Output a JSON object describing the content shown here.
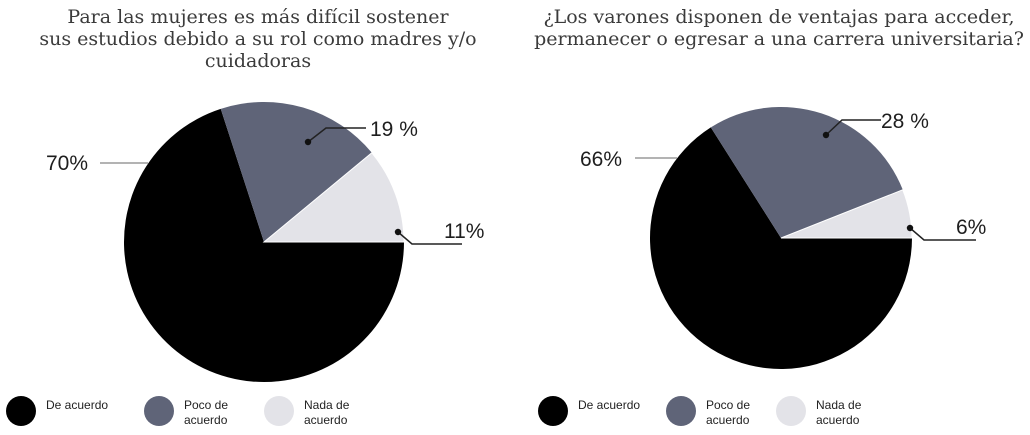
{
  "chart_data": [
    {
      "type": "pie",
      "title": "Para las mujeres es más difícil sostener sus estudios debido a su rol como madres y/o cuidadoras",
      "title_lines": [
        "Para las mujeres es más difícil sostener",
        "sus estudios debido a su rol como madres y/o",
        "cuidadoras"
      ],
      "slices": [
        {
          "name": "De acuerdo",
          "value": 70,
          "label": "70%",
          "color": "#000000"
        },
        {
          "name": "Poco de acuerdo",
          "value": 19,
          "label": "19 %",
          "color": "#5f6478"
        },
        {
          "name": "Nada de acuerdo",
          "value": 11,
          "label": "11%",
          "color": "#e3e3e8"
        }
      ],
      "legend": {
        "placement": "bottom",
        "items": [
          {
            "label": "De acuerdo",
            "color": "#000000"
          },
          {
            "label": "Poco de acuerdo",
            "color": "#5f6478"
          },
          {
            "label": "Nada de acuerdo",
            "color": "#e3e3e8"
          }
        ]
      }
    },
    {
      "type": "pie",
      "title": "¿Los varones disponen de ventajas para acceder, permanecer o egresar a una carrera universitaria?",
      "title_lines": [
        "¿Los varones disponen de ventajas para acceder,",
        "permanecer o egresar a una carrera universitaria?"
      ],
      "slices": [
        {
          "name": "De acuerdo",
          "value": 66,
          "label": "66%",
          "color": "#000000"
        },
        {
          "name": "Poco de acuerdo",
          "value": 28,
          "label": "28 %",
          "color": "#5f6478"
        },
        {
          "name": "Nada de acuerdo",
          "value": 6,
          "label": "6%",
          "color": "#e3e3e8"
        }
      ],
      "legend": {
        "placement": "bottom",
        "items": [
          {
            "label": "De acuerdo",
            "color": "#000000"
          },
          {
            "label": "Poco de acuerdo",
            "color": "#5f6478"
          },
          {
            "label": "Nada de acuerdo",
            "color": "#e3e3e8"
          }
        ]
      }
    }
  ]
}
